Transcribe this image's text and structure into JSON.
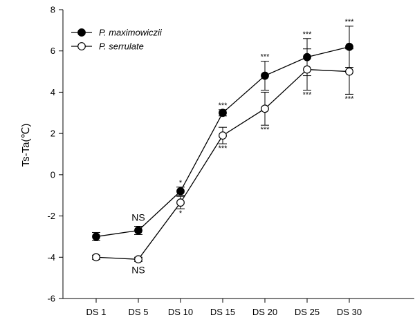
{
  "chart_data": {
    "type": "line",
    "title": "",
    "xlabel": "",
    "ylabel": "Ts-Ta(℃)",
    "categories": [
      "DS 1",
      "DS 5",
      "DS 10",
      "DS 15",
      "DS 20",
      "DS 25",
      "DS 30"
    ],
    "ylim": [
      -6,
      8
    ],
    "yticks": [
      -6,
      -4,
      -2,
      0,
      2,
      4,
      6,
      8
    ],
    "grid": false,
    "legend_position": "top-left",
    "series": [
      {
        "name": "P. maximowiczii",
        "marker": "filled-circle",
        "color": "#000000",
        "values": [
          -3.0,
          -2.7,
          -0.8,
          3.0,
          4.8,
          5.7,
          6.2
        ],
        "errors": [
          0.2,
          0.2,
          0.2,
          0.15,
          0.7,
          0.9,
          1.0
        ],
        "annotations": [
          "",
          "NS",
          "*",
          "***",
          "***",
          "***",
          "***"
        ]
      },
      {
        "name": "P. serrulate",
        "marker": "open-circle",
        "color": "#000000",
        "values": [
          -4.0,
          -4.1,
          -1.35,
          1.9,
          3.2,
          5.1,
          5.0
        ],
        "errors": [
          0.1,
          0.1,
          0.3,
          0.4,
          0.8,
          1.0,
          1.1
        ],
        "annotations": [
          "",
          "NS",
          "*",
          "***",
          "***",
          "***",
          "***"
        ]
      }
    ]
  }
}
